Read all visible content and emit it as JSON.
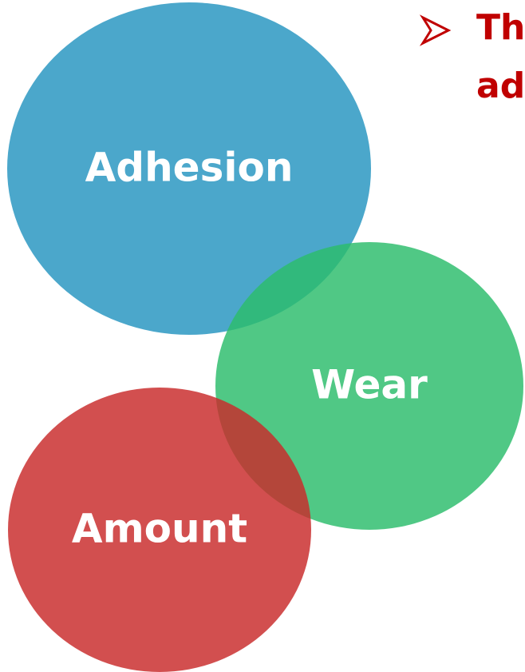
{
  "heading": {
    "lines": [
      "Th",
      "ad"
    ]
  },
  "circles": [
    {
      "label": "Adhesion"
    },
    {
      "label": "Wear"
    },
    {
      "label": "Amount"
    }
  ]
}
